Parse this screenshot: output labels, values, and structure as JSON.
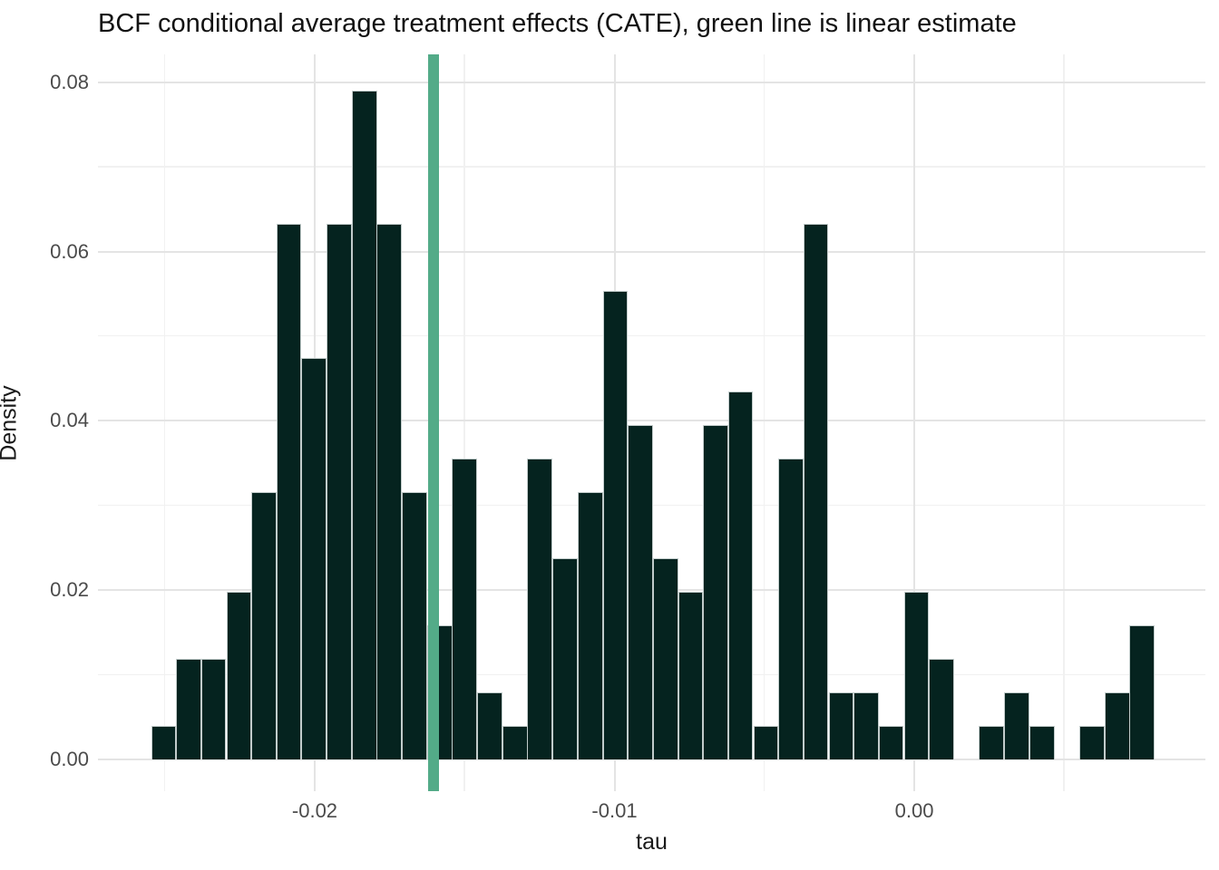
{
  "title": "BCF conditional average treatment effects (CATE), green line is linear estimate",
  "chart_data": {
    "type": "bar",
    "subtype": "histogram",
    "title": "BCF conditional average treatment effects (CATE), green line is linear estimate",
    "xlabel": "tau",
    "ylabel": "Density",
    "legend_position": "none",
    "grid": "on",
    "xlim": [
      -0.02723,
      0.00971
    ],
    "ylim": [
      -0.00375,
      0.0833
    ],
    "x_ticks": [
      -0.02,
      -0.01,
      0.0
    ],
    "x_tick_labels": [
      "-0.02",
      "-0.01",
      "0.00"
    ],
    "y_ticks": [
      0.0,
      0.02,
      0.04,
      0.06,
      0.08
    ],
    "y_tick_labels": [
      "0.00",
      "0.02",
      "0.04",
      "0.06",
      "0.08"
    ],
    "n_bins": 40,
    "bin_width": 0.000837,
    "total_count": 253,
    "bin_centers": [
      -0.02504,
      -0.0242,
      -0.02337,
      -0.02253,
      -0.02169,
      -0.02086,
      -0.02002,
      -0.01918,
      -0.01834,
      -0.01751,
      -0.01667,
      -0.01583,
      -0.015,
      -0.01416,
      -0.01332,
      -0.01249,
      -0.01165,
      -0.01081,
      -0.00997,
      -0.00914,
      -0.0083,
      -0.00746,
      -0.00663,
      -0.00579,
      -0.00495,
      -0.00411,
      -0.00328,
      -0.00244,
      -0.0016,
      -0.00077,
      7e-05,
      0.00091,
      0.00174,
      0.00258,
      0.00342,
      0.00426,
      0.00509,
      0.00593,
      0.00677,
      0.0076
    ],
    "counts": [
      1,
      3,
      3,
      5,
      8,
      16,
      12,
      16,
      20,
      16,
      8,
      4,
      9,
      2,
      1,
      9,
      6,
      8,
      14,
      10,
      6,
      5,
      10,
      11,
      1,
      9,
      16,
      2,
      2,
      1,
      5,
      3,
      0,
      1,
      2,
      1,
      0,
      1,
      2,
      4
    ],
    "densities": [
      0.00395,
      0.01186,
      0.01186,
      0.01976,
      0.03162,
      0.06324,
      0.04743,
      0.06324,
      0.07905,
      0.06324,
      0.03162,
      0.01581,
      0.03557,
      0.00791,
      0.00395,
      0.03557,
      0.02372,
      0.03162,
      0.05534,
      0.03953,
      0.02372,
      0.01976,
      0.03953,
      0.04348,
      0.00395,
      0.03557,
      0.06324,
      0.00791,
      0.00791,
      0.00395,
      0.01976,
      0.01186,
      0.0,
      0.00395,
      0.00791,
      0.00395,
      0.0,
      0.00395,
      0.00791,
      0.01581
    ],
    "vline": {
      "x": -0.01605,
      "color": "#53ab88"
    },
    "colors": {
      "bar_fill": "#05231f",
      "bar_border": "#c2cccb",
      "grid_major": "#e4e4e4",
      "grid_minor": "#f1f1f1",
      "tick_text": "#4b4b4b",
      "axis_title_text": "#1a1a1a",
      "background": "#ffffff"
    }
  }
}
